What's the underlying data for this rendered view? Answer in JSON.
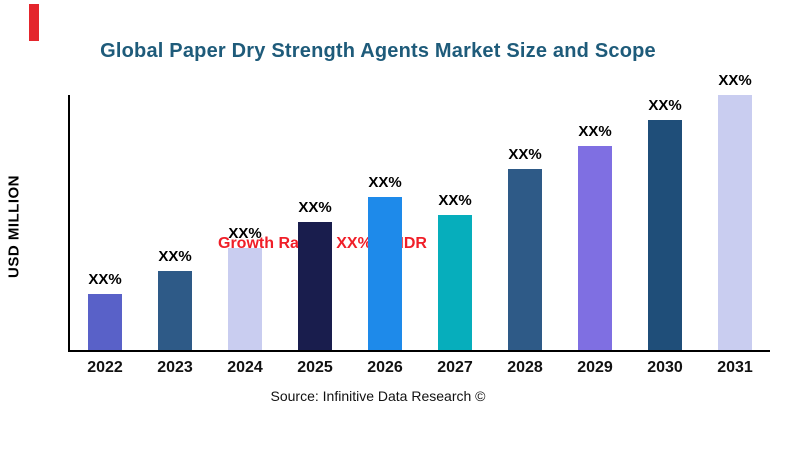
{
  "page": {
    "background": "#ffffff"
  },
  "decor": {
    "red_stripe_color": "#e4252c"
  },
  "header": {
    "title": "Global Paper Dry Strength Agents Market Size and Scope",
    "title_color": "#1e5b7a"
  },
  "annotation": {
    "growth_text": "Growth Rate at XX% by IDR",
    "color": "#f01e28"
  },
  "y_axis": {
    "label": "USD MILLION"
  },
  "footer": {
    "source": "Source: Infinitive Data Research ©"
  },
  "chart_data": {
    "type": "bar",
    "title": "Global Paper Dry Strength Agents Market Size and Scope",
    "xlabel": "",
    "ylabel": "USD MILLION",
    "categories": [
      "2022",
      "2023",
      "2024",
      "2025",
      "2026",
      "2027",
      "2028",
      "2029",
      "2030",
      "2031"
    ],
    "values": [
      22,
      31,
      40,
      50,
      60,
      53,
      71,
      80,
      90,
      100
    ],
    "bar_labels": [
      "XX%",
      "XX%",
      "XX%",
      "XX%",
      "XX%",
      "XX%",
      "XX%",
      "XX%",
      "XX%",
      "XX%"
    ],
    "colors": [
      "#5961c8",
      "#2e5a87",
      "#c9cdf0",
      "#191d4d",
      "#1e8aea",
      "#06aebc",
      "#2e5a87",
      "#7f6fe2",
      "#1f4e79",
      "#c9cdf0"
    ],
    "ylim": [
      0,
      100
    ],
    "grid": false,
    "legend_position": "none",
    "annotations": [
      "Growth Rate at XX% by IDR"
    ]
  }
}
